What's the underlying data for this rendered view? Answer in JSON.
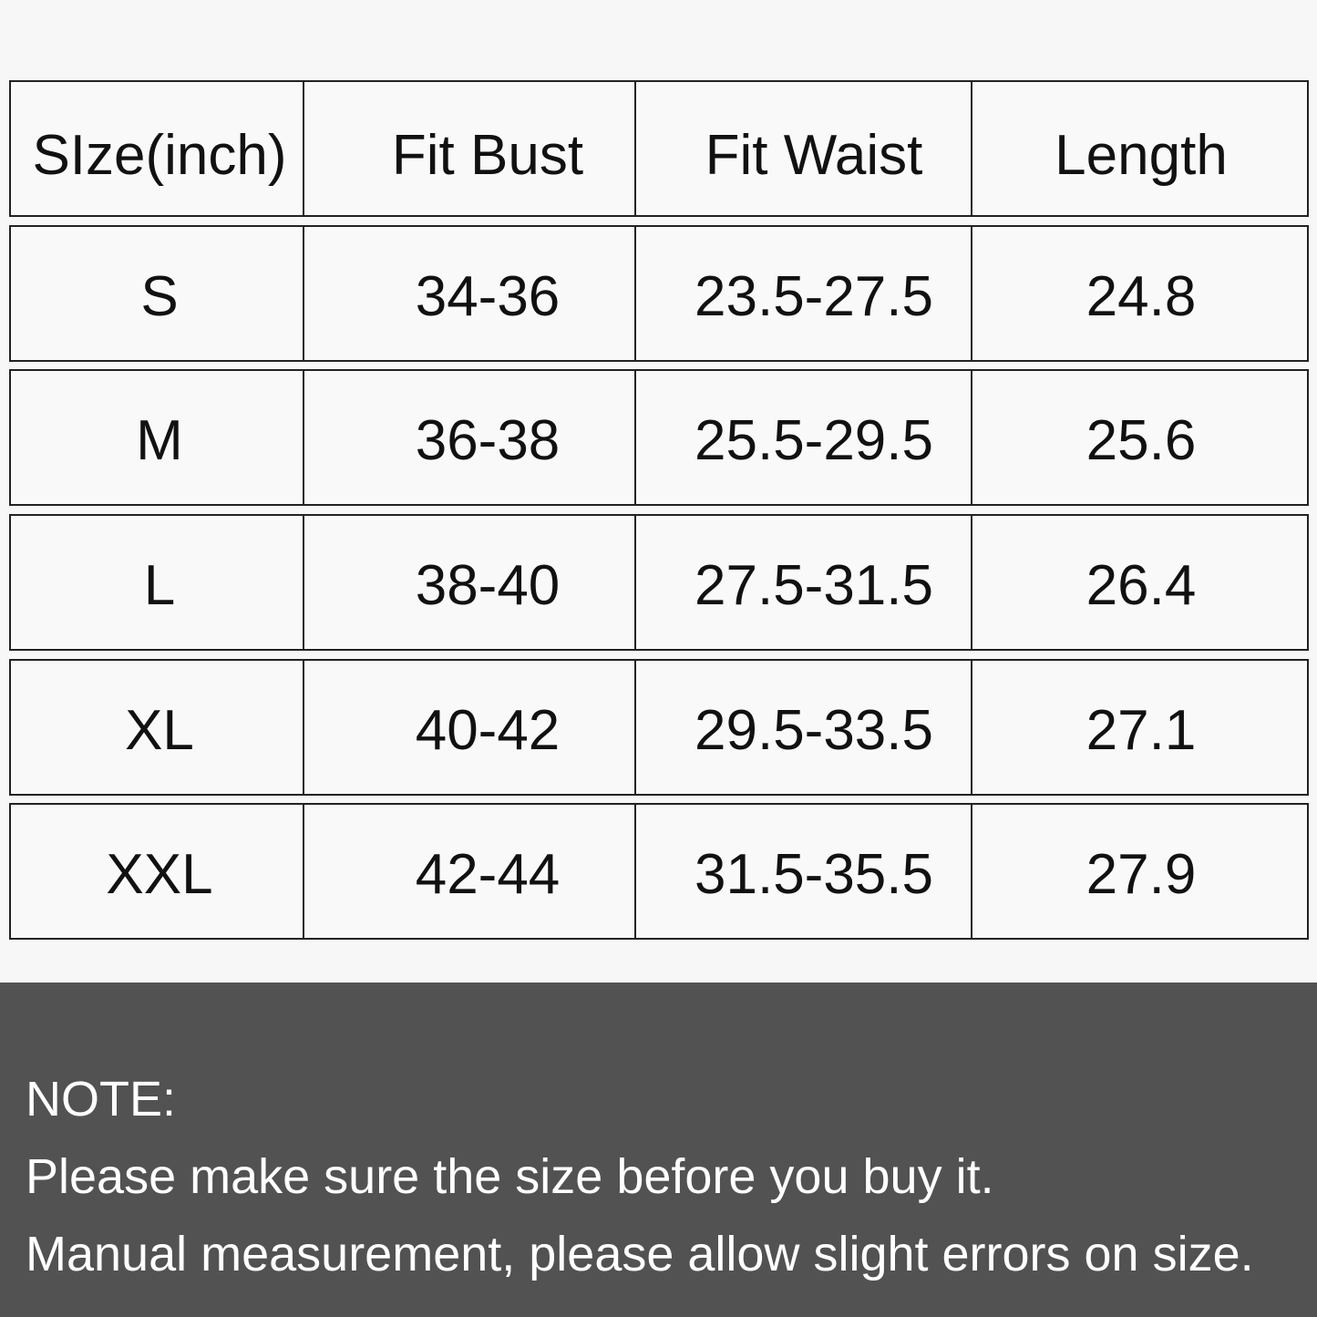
{
  "table": {
    "header": [
      "SIze(inch)",
      "Fit Bust",
      "Fit Waist",
      "Length"
    ],
    "rows": [
      [
        "S",
        "34-36",
        "23.5-27.5",
        "24.8"
      ],
      [
        "M",
        "36-38",
        "25.5-29.5",
        "25.6"
      ],
      [
        "L",
        "38-40",
        "27.5-31.5",
        "26.4"
      ],
      [
        "XL",
        "40-42",
        "29.5-33.5",
        "27.1"
      ],
      [
        "XXL",
        "42-44",
        "31.5-35.5",
        "27.9"
      ]
    ]
  },
  "note": {
    "title": "NOTE:",
    "lines": [
      "Please make sure the size before you buy it.",
      "Manual measurement, please allow slight errors on size."
    ]
  }
}
